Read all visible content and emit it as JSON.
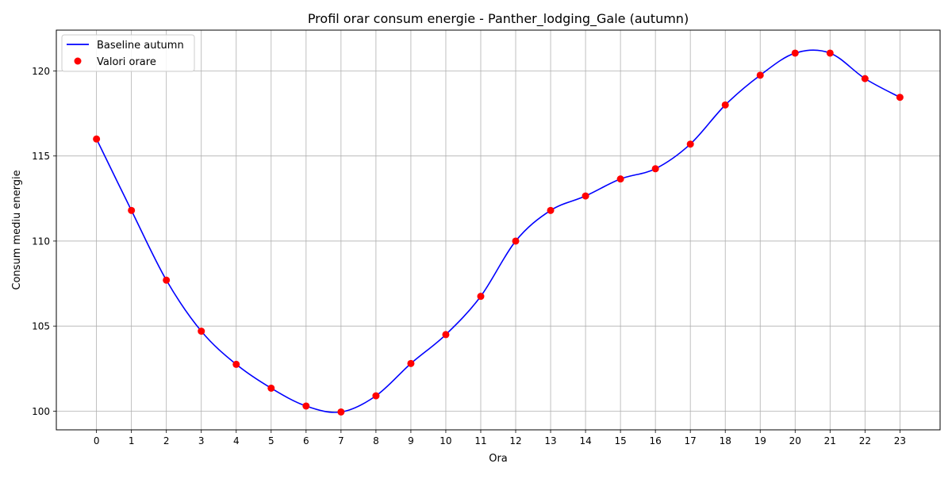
{
  "chart_data": {
    "type": "line",
    "title": "Profil orar consum energie - Panther_lodging_Gale (autumn)",
    "xlabel": "Ora",
    "ylabel": "Consum mediu energie",
    "x": [
      0,
      1,
      2,
      3,
      4,
      5,
      6,
      7,
      8,
      9,
      10,
      11,
      12,
      13,
      14,
      15,
      16,
      17,
      18,
      19,
      20,
      21,
      22,
      23
    ],
    "xlim": [
      -1.15,
      24.15
    ],
    "ylim": [
      98.9,
      122.4
    ],
    "x_ticks": [
      "0",
      "1",
      "2",
      "3",
      "4",
      "5",
      "6",
      "7",
      "8",
      "9",
      "10",
      "11",
      "12",
      "13",
      "14",
      "15",
      "16",
      "17",
      "18",
      "19",
      "20",
      "21",
      "22",
      "23"
    ],
    "y_ticks": [
      100,
      105,
      110,
      115,
      120
    ],
    "y_tick_labels": [
      "100",
      "105",
      "110",
      "115",
      "120"
    ],
    "grid": true,
    "legend_position": "upper-left",
    "series": [
      {
        "name": "Baseline autumn",
        "kind": "line",
        "color": "#0000ff",
        "values": [
          116.0,
          111.8,
          107.7,
          104.7,
          102.75,
          101.35,
          100.3,
          99.95,
          100.9,
          102.8,
          104.5,
          106.75,
          110.0,
          111.8,
          112.65,
          113.65,
          114.25,
          115.7,
          118.0,
          119.75,
          121.05,
          121.05,
          119.55,
          118.45
        ]
      },
      {
        "name": "Valori orare",
        "kind": "scatter",
        "color": "#ff0000",
        "values": [
          116.0,
          111.8,
          107.7,
          104.7,
          102.75,
          101.35,
          100.3,
          99.95,
          100.9,
          102.8,
          104.5,
          106.75,
          110.0,
          111.8,
          112.65,
          113.65,
          114.25,
          115.7,
          118.0,
          119.75,
          121.05,
          121.05,
          119.55,
          118.45
        ]
      }
    ]
  }
}
